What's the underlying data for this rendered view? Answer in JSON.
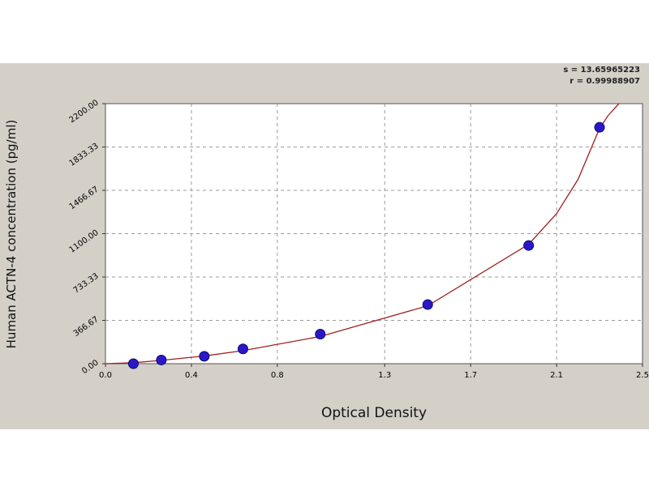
{
  "chart_data": {
    "type": "scatter",
    "xlabel": "Optical Density",
    "ylabel": "Human ACTN-4 concentration (pg/ml)",
    "xlim": [
      0.0,
      2.5
    ],
    "ylim": [
      0.0,
      2200.0
    ],
    "x_ticks": [
      "0.0",
      "0.4",
      "0.8",
      "1.3",
      "1.7",
      "2.1",
      "2.5"
    ],
    "x_tick_values": [
      0.0,
      0.4,
      0.8,
      1.3,
      1.7,
      2.1,
      2.5
    ],
    "y_ticks": [
      "0.00",
      "366.67",
      "733.33",
      "1100.00",
      "1466.67",
      "1833.33",
      "2200.00"
    ],
    "y_tick_values": [
      0,
      366.67,
      733.33,
      1100,
      1466.67,
      1833.33,
      2200
    ],
    "grid": true,
    "stats": [
      "s = 13.65965223",
      "r = 0.99988907"
    ],
    "points": {
      "x": [
        0.13,
        0.26,
        0.46,
        0.64,
        1.0,
        1.5,
        1.97,
        2.3
      ],
      "y": [
        0,
        31.25,
        62.5,
        125,
        250,
        500,
        1000,
        2000
      ]
    },
    "fit_curve": {
      "x": [
        0.0,
        0.13,
        0.26,
        0.46,
        0.64,
        1.0,
        1.5,
        1.97,
        2.1,
        2.2,
        2.3,
        2.34,
        2.39
      ],
      "y": [
        0,
        8,
        28,
        65,
        110,
        230,
        490,
        1010,
        1270,
        1560,
        1990,
        2100,
        2200
      ]
    },
    "colors": {
      "point": "#2a18c8",
      "curve": "#a02020",
      "grid": "#9a9a9a",
      "plot_bg": "#ffffff",
      "panel_bg": "#d4d0c8"
    }
  }
}
